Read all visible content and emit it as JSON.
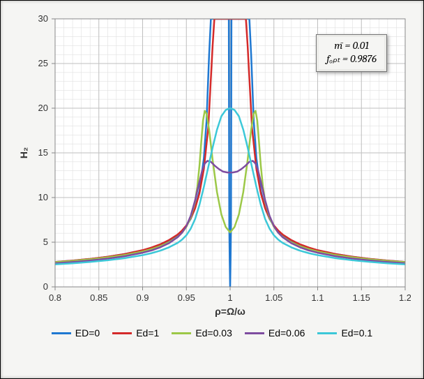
{
  "chart": {
    "type": "line",
    "xlim": [
      0.8,
      1.2
    ],
    "ylim": [
      0,
      30
    ],
    "xtick_step": 0.05,
    "ytick_step": 5,
    "xminor_per_major": 5,
    "yminor_per_major": 5,
    "xlabel": "ρ=Ω/ω",
    "ylabel": "H₂",
    "label_fontsize": 14,
    "tick_fontsize": 13,
    "background_color": "#ffffff",
    "frame_bg_color": "#f5f5f3",
    "major_grid_color": "#bfbfbf",
    "minor_grid_color": "#e0e0e0",
    "axis_color": "#888888",
    "line_width": 2.5,
    "annotation": {
      "line1": "m̄ = 0.01",
      "line2": "fₒₚₜ = 0.9876"
    },
    "series": [
      {
        "label": "ED=0",
        "color": "#1f78d1",
        "points": [
          [
            0.8,
            2.78
          ],
          [
            0.82,
            2.94
          ],
          [
            0.84,
            3.13
          ],
          [
            0.86,
            3.37
          ],
          [
            0.88,
            3.68
          ],
          [
            0.9,
            4.09
          ],
          [
            0.91,
            4.37
          ],
          [
            0.92,
            4.73
          ],
          [
            0.93,
            5.18
          ],
          [
            0.94,
            5.81
          ],
          [
            0.945,
            6.24
          ],
          [
            0.95,
            6.82
          ],
          [
            0.955,
            7.62
          ],
          [
            0.96,
            8.82
          ],
          [
            0.965,
            10.8
          ],
          [
            0.97,
            14.4
          ],
          [
            0.973,
            18.5
          ],
          [
            0.976,
            26.0
          ],
          [
            0.978,
            30.0
          ],
          [
            0.9985,
            30.0
          ],
          [
            0.999,
            7.0
          ],
          [
            0.9995,
            3.0
          ],
          [
            1.0,
            0.0
          ],
          [
            1.0005,
            3.0
          ],
          [
            1.001,
            7.0
          ],
          [
            1.0015,
            30.0
          ],
          [
            1.022,
            30.0
          ],
          [
            1.024,
            26.0
          ],
          [
            1.027,
            18.5
          ],
          [
            1.03,
            14.4
          ],
          [
            1.035,
            10.8
          ],
          [
            1.04,
            8.82
          ],
          [
            1.045,
            7.62
          ],
          [
            1.05,
            6.82
          ],
          [
            1.055,
            6.24
          ],
          [
            1.06,
            5.81
          ],
          [
            1.07,
            5.18
          ],
          [
            1.08,
            4.73
          ],
          [
            1.09,
            4.37
          ],
          [
            1.1,
            4.09
          ],
          [
            1.12,
            3.68
          ],
          [
            1.14,
            3.37
          ],
          [
            1.16,
            3.13
          ],
          [
            1.18,
            2.94
          ],
          [
            1.2,
            2.78
          ]
        ],
        "always_positive": true
      },
      {
        "label": "Ed=1",
        "color": "#d42a2a",
        "points": [
          [
            0.8,
            2.78
          ],
          [
            0.82,
            2.94
          ],
          [
            0.84,
            3.13
          ],
          [
            0.86,
            3.37
          ],
          [
            0.88,
            3.68
          ],
          [
            0.9,
            4.11
          ],
          [
            0.91,
            4.4
          ],
          [
            0.92,
            4.76
          ],
          [
            0.93,
            5.23
          ],
          [
            0.94,
            5.86
          ],
          [
            0.945,
            6.3
          ],
          [
            0.95,
            6.88
          ],
          [
            0.955,
            7.68
          ],
          [
            0.96,
            8.8
          ],
          [
            0.965,
            10.5
          ],
          [
            0.97,
            13.2
          ],
          [
            0.975,
            17.8
          ],
          [
            0.98,
            27.0
          ],
          [
            0.982,
            30.0
          ],
          [
            1.018,
            30.0
          ],
          [
            1.02,
            27.0
          ],
          [
            1.025,
            17.8
          ],
          [
            1.03,
            13.2
          ],
          [
            1.035,
            10.5
          ],
          [
            1.04,
            8.8
          ],
          [
            1.045,
            7.68
          ],
          [
            1.05,
            6.88
          ],
          [
            1.055,
            6.3
          ],
          [
            1.06,
            5.86
          ],
          [
            1.07,
            5.23
          ],
          [
            1.08,
            4.76
          ],
          [
            1.09,
            4.4
          ],
          [
            1.1,
            4.11
          ],
          [
            1.12,
            3.68
          ],
          [
            1.14,
            3.37
          ],
          [
            1.16,
            3.13
          ],
          [
            1.18,
            2.94
          ],
          [
            1.2,
            2.78
          ]
        ]
      },
      {
        "label": "Ed=0.03",
        "color": "#9cc847",
        "points": [
          [
            0.8,
            2.76
          ],
          [
            0.82,
            2.9
          ],
          [
            0.84,
            3.08
          ],
          [
            0.86,
            3.3
          ],
          [
            0.88,
            3.58
          ],
          [
            0.9,
            3.96
          ],
          [
            0.91,
            4.22
          ],
          [
            0.92,
            4.55
          ],
          [
            0.93,
            4.98
          ],
          [
            0.94,
            5.6
          ],
          [
            0.945,
            6.05
          ],
          [
            0.95,
            6.72
          ],
          [
            0.955,
            7.78
          ],
          [
            0.96,
            9.6
          ],
          [
            0.9625,
            11.2
          ],
          [
            0.965,
            13.6
          ],
          [
            0.967,
            16.2
          ],
          [
            0.969,
            18.6
          ],
          [
            0.971,
            19.7
          ],
          [
            0.973,
            19.4
          ],
          [
            0.976,
            17.6
          ],
          [
            0.98,
            14.2
          ],
          [
            0.985,
            10.6
          ],
          [
            0.99,
            8.1
          ],
          [
            0.995,
            6.7
          ],
          [
            1.0,
            6.1
          ],
          [
            1.005,
            6.7
          ],
          [
            1.01,
            8.1
          ],
          [
            1.015,
            10.6
          ],
          [
            1.02,
            14.2
          ],
          [
            1.024,
            17.6
          ],
          [
            1.027,
            19.4
          ],
          [
            1.029,
            19.7
          ],
          [
            1.031,
            18.6
          ],
          [
            1.033,
            16.2
          ],
          [
            1.035,
            13.6
          ],
          [
            1.0375,
            11.2
          ],
          [
            1.04,
            9.6
          ],
          [
            1.045,
            7.78
          ],
          [
            1.05,
            6.72
          ],
          [
            1.055,
            6.05
          ],
          [
            1.06,
            5.6
          ],
          [
            1.07,
            4.98
          ],
          [
            1.08,
            4.55
          ],
          [
            1.09,
            4.22
          ],
          [
            1.1,
            3.96
          ],
          [
            1.12,
            3.58
          ],
          [
            1.14,
            3.3
          ],
          [
            1.16,
            3.08
          ],
          [
            1.18,
            2.9
          ],
          [
            1.2,
            2.76
          ]
        ]
      },
      {
        "label": "Ed=0.06",
        "color": "#7e4ca0",
        "points": [
          [
            0.8,
            2.64
          ],
          [
            0.82,
            2.78
          ],
          [
            0.84,
            2.95
          ],
          [
            0.86,
            3.16
          ],
          [
            0.88,
            3.44
          ],
          [
            0.9,
            3.82
          ],
          [
            0.91,
            4.08
          ],
          [
            0.92,
            4.42
          ],
          [
            0.93,
            4.88
          ],
          [
            0.94,
            5.56
          ],
          [
            0.945,
            6.06
          ],
          [
            0.95,
            6.8
          ],
          [
            0.955,
            7.96
          ],
          [
            0.96,
            9.7
          ],
          [
            0.965,
            11.8
          ],
          [
            0.968,
            13.0
          ],
          [
            0.971,
            13.8
          ],
          [
            0.974,
            14.1
          ],
          [
            0.978,
            14.0
          ],
          [
            0.982,
            13.6
          ],
          [
            0.987,
            13.2
          ],
          [
            0.992,
            12.9
          ],
          [
            0.997,
            12.8
          ],
          [
            1.0,
            12.8
          ],
          [
            1.003,
            12.8
          ],
          [
            1.008,
            12.9
          ],
          [
            1.013,
            13.2
          ],
          [
            1.018,
            13.6
          ],
          [
            1.022,
            14.0
          ],
          [
            1.026,
            14.1
          ],
          [
            1.029,
            13.8
          ],
          [
            1.032,
            13.0
          ],
          [
            1.035,
            11.8
          ],
          [
            1.04,
            9.7
          ],
          [
            1.045,
            7.96
          ],
          [
            1.05,
            6.8
          ],
          [
            1.055,
            6.06
          ],
          [
            1.06,
            5.56
          ],
          [
            1.07,
            4.88
          ],
          [
            1.08,
            4.42
          ],
          [
            1.09,
            4.08
          ],
          [
            1.1,
            3.82
          ],
          [
            1.12,
            3.44
          ],
          [
            1.14,
            3.16
          ],
          [
            1.16,
            2.95
          ],
          [
            1.18,
            2.78
          ],
          [
            1.2,
            2.64
          ]
        ]
      },
      {
        "label": "Ed=0.1",
        "color": "#3cc8d8",
        "points": [
          [
            0.8,
            2.52
          ],
          [
            0.82,
            2.64
          ],
          [
            0.84,
            2.79
          ],
          [
            0.86,
            2.98
          ],
          [
            0.88,
            3.22
          ],
          [
            0.9,
            3.55
          ],
          [
            0.91,
            3.77
          ],
          [
            0.92,
            4.05
          ],
          [
            0.93,
            4.42
          ],
          [
            0.94,
            4.92
          ],
          [
            0.945,
            5.28
          ],
          [
            0.95,
            5.78
          ],
          [
            0.955,
            6.52
          ],
          [
            0.96,
            7.6
          ],
          [
            0.965,
            9.2
          ],
          [
            0.97,
            11.2
          ],
          [
            0.975,
            13.4
          ],
          [
            0.98,
            15.6
          ],
          [
            0.985,
            17.6
          ],
          [
            0.99,
            19.1
          ],
          [
            0.995,
            19.8
          ],
          [
            1.0,
            20.0
          ],
          [
            1.005,
            19.8
          ],
          [
            1.01,
            19.1
          ],
          [
            1.015,
            17.6
          ],
          [
            1.02,
            15.6
          ],
          [
            1.025,
            13.4
          ],
          [
            1.03,
            11.2
          ],
          [
            1.035,
            9.2
          ],
          [
            1.04,
            7.6
          ],
          [
            1.045,
            6.52
          ],
          [
            1.05,
            5.78
          ],
          [
            1.055,
            5.28
          ],
          [
            1.06,
            4.92
          ],
          [
            1.07,
            4.42
          ],
          [
            1.08,
            4.05
          ],
          [
            1.09,
            3.77
          ],
          [
            1.1,
            3.55
          ],
          [
            1.12,
            3.22
          ],
          [
            1.14,
            2.98
          ],
          [
            1.16,
            2.79
          ],
          [
            1.18,
            2.64
          ],
          [
            1.2,
            2.52
          ]
        ]
      }
    ],
    "legend_items": [
      {
        "label": "ED=0",
        "color": "#1f78d1"
      },
      {
        "label": "Ed=1",
        "color": "#d42a2a"
      },
      {
        "label": "Ed=0.03",
        "color": "#9cc847"
      },
      {
        "label": "Ed=0.06",
        "color": "#7e4ca0"
      },
      {
        "label": "Ed=0.1",
        "color": "#3cc8d8"
      }
    ]
  }
}
